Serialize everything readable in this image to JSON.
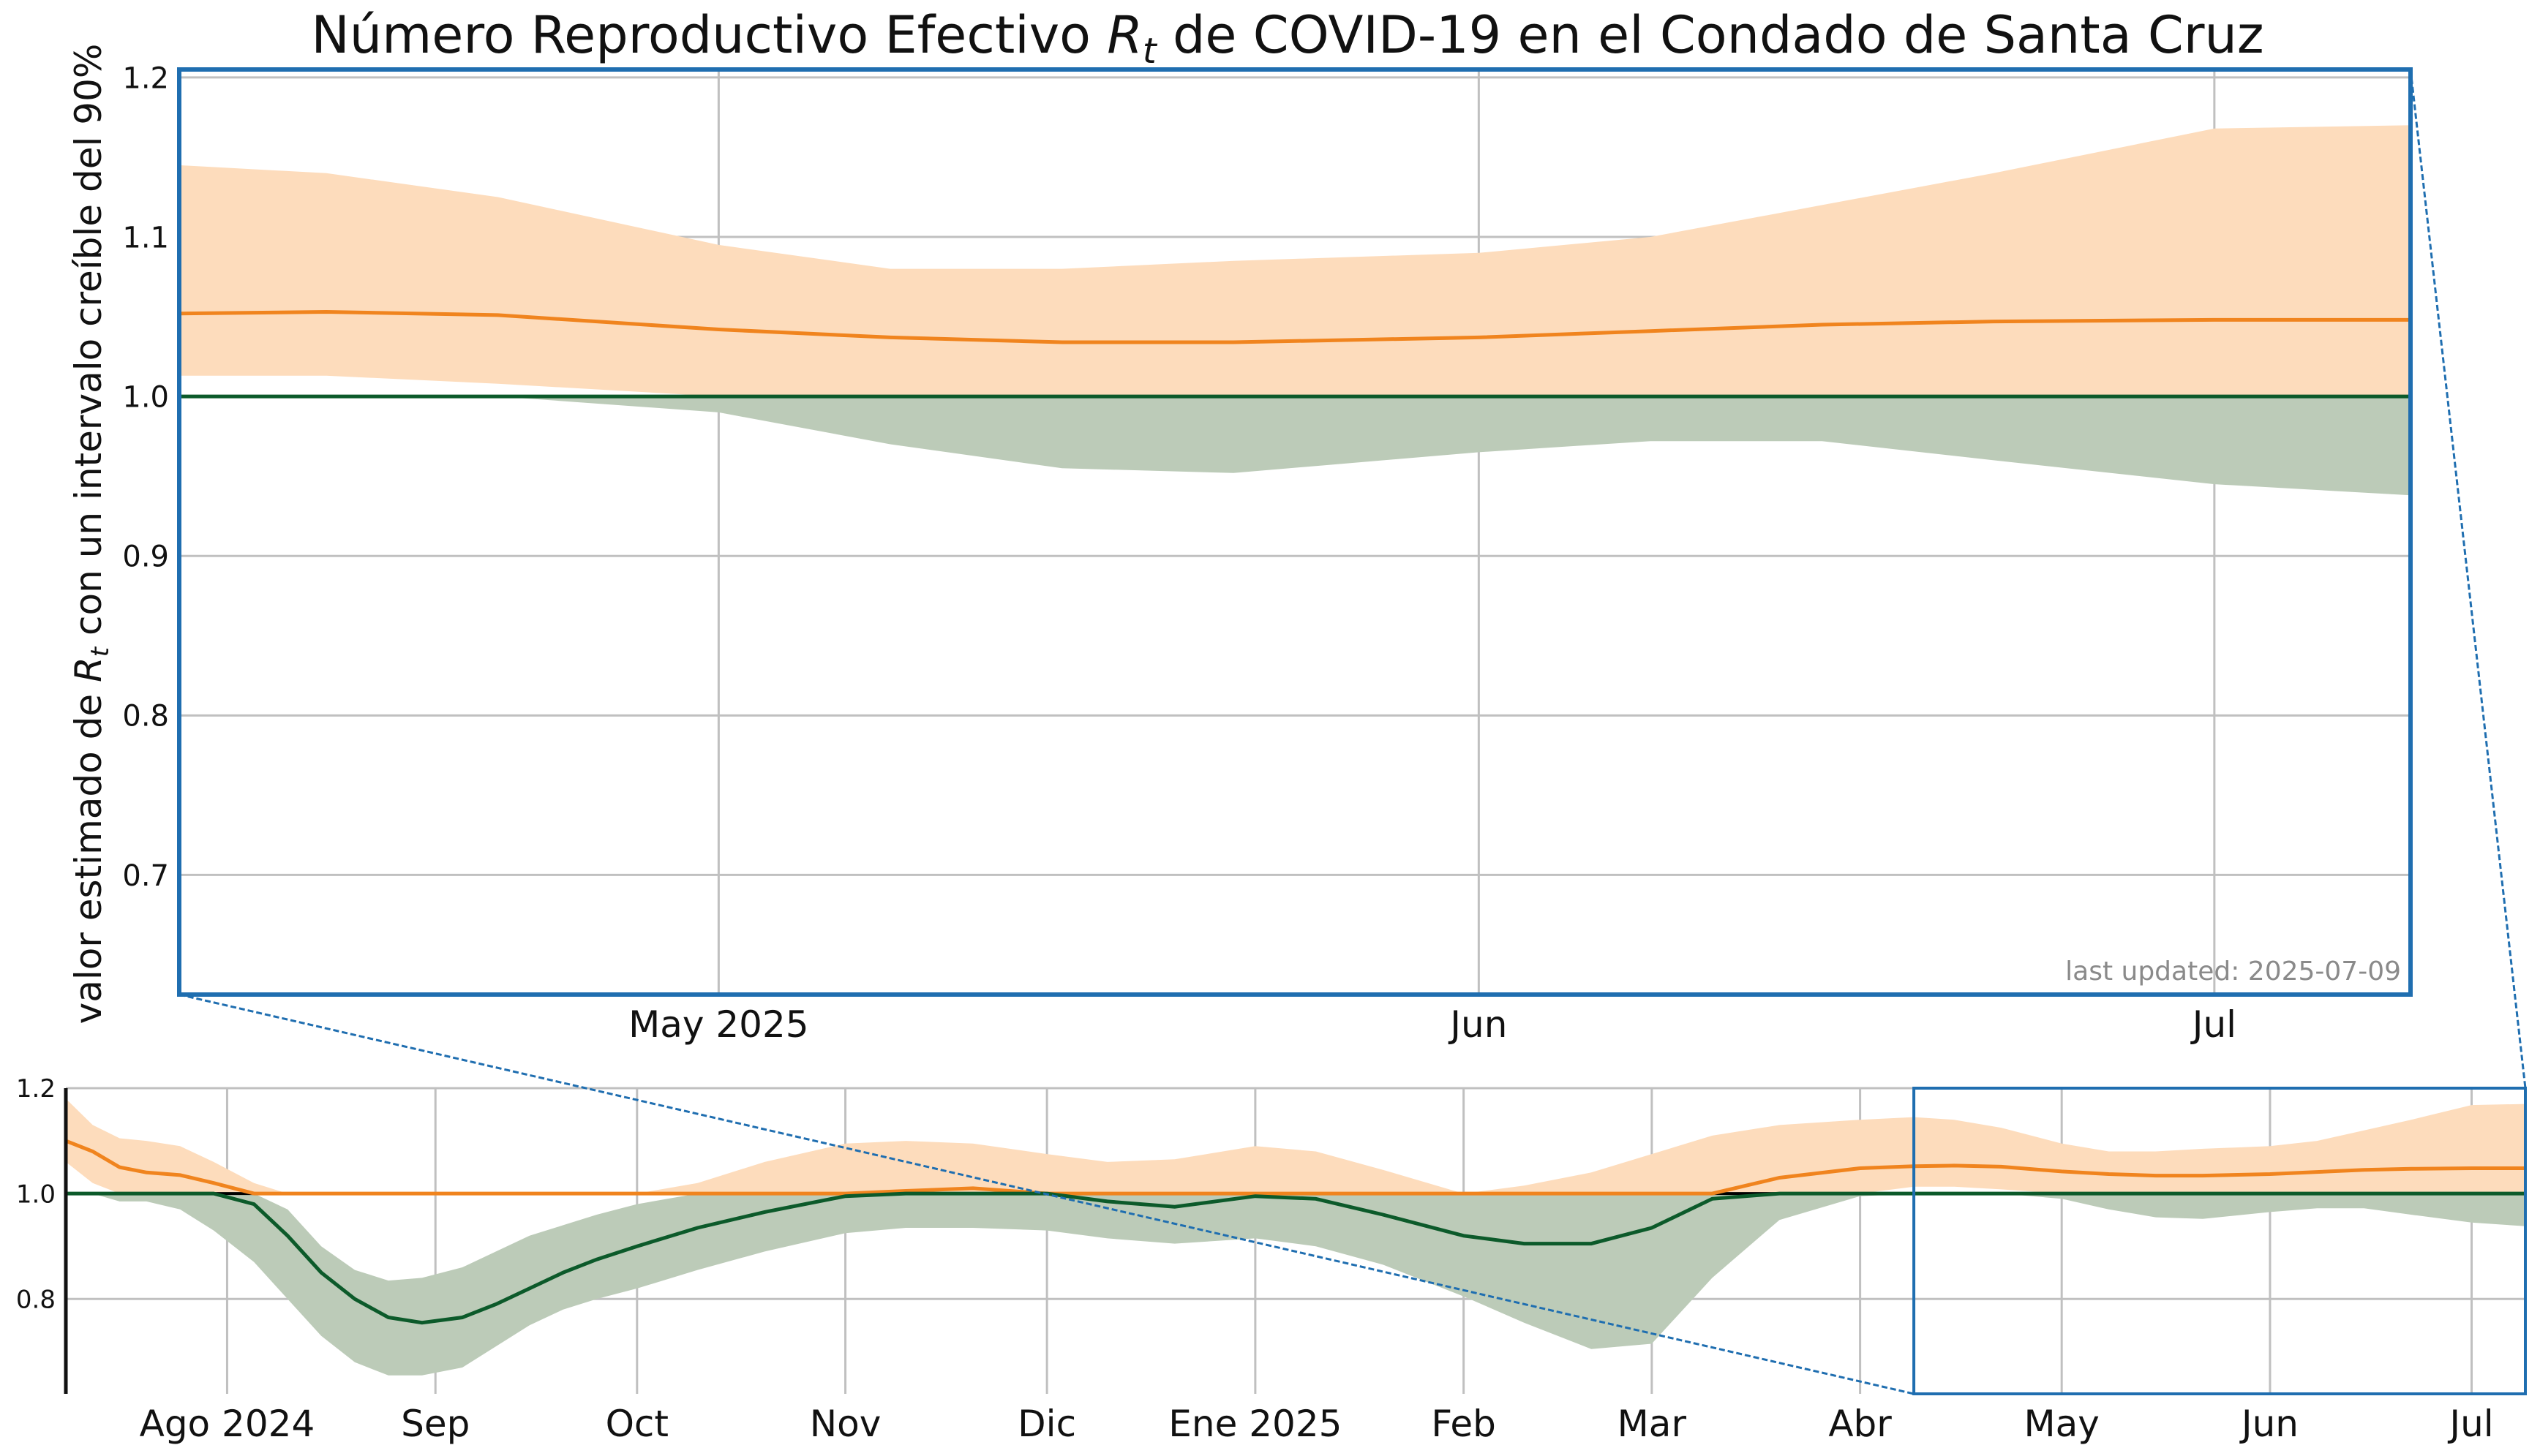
{
  "chart_data": {
    "type": "line",
    "title_prefix": "Número Reproductivo Efectivo ",
    "title_symbol": "R",
    "title_symbol_sub": "t",
    "title_suffix": " de COVID-19 en el Condado de Santa Cruz",
    "ylabel_prefix": "valor estimado de ",
    "ylabel_symbol": "R",
    "ylabel_symbol_sub": "t",
    "ylabel_suffix": " con un intervalo creíble del 90%",
    "annotation": "last updated: 2025-07-09",
    "reference_line": 1.0,
    "colors": {
      "above_line": "#f0841e",
      "above_band": "#fddcbc",
      "below_line": "#0c5a2a",
      "below_band": "#bccbb8",
      "zoom_box": "#1f6eb0",
      "reference": "#000000",
      "grid": "#c0c0c0"
    },
    "main_panel": {
      "x_range": [
        "2025-04-09",
        "2025-07-09"
      ],
      "y_range": [
        0.625,
        1.205
      ],
      "y_ticks": [
        0.7,
        0.8,
        0.9,
        1.0,
        1.1,
        1.2
      ],
      "y_tick_labels": [
        "0.7",
        "0.8",
        "0.9",
        "1.0",
        "1.1",
        "1.2"
      ],
      "x_ticks": [
        "2025-05-01",
        "2025-06-01",
        "2025-07-01"
      ],
      "x_tick_labels": [
        "May 2025",
        "Jun",
        "Jul"
      ]
    },
    "overview_panel": {
      "x_range": [
        "2024-07-08",
        "2025-07-09"
      ],
      "y_range": [
        0.62,
        1.2
      ],
      "y_ticks": [
        0.8,
        1.0,
        1.2
      ],
      "y_tick_labels": [
        "0.8",
        "1.0",
        "1.2"
      ],
      "x_ticks": [
        "2024-08-01",
        "2024-09-01",
        "2024-10-01",
        "2024-11-01",
        "2024-12-01",
        "2025-01-01",
        "2025-02-01",
        "2025-03-01",
        "2025-04-01",
        "2025-05-01",
        "2025-06-01",
        "2025-07-01"
      ],
      "x_tick_labels": [
        "Ago 2024",
        "Sep",
        "Oct",
        "Nov",
        "Dic",
        "Ene 2025",
        "Feb",
        "Mar",
        "Abr",
        "May",
        "Jun",
        "Jul"
      ],
      "zoom_window": [
        "2025-04-09",
        "2025-07-09"
      ]
    },
    "series": [
      {
        "x": [
          "2024-07-08",
          "2024-07-12",
          "2024-07-16",
          "2024-07-20",
          "2024-07-25",
          "2024-07-30",
          "2024-08-05",
          "2024-08-10",
          "2024-08-15",
          "2024-08-20",
          "2024-08-25",
          "2024-08-30",
          "2024-09-05",
          "2024-09-10",
          "2024-09-15",
          "2024-09-20",
          "2024-09-25",
          "2024-10-01",
          "2024-10-10",
          "2024-10-20",
          "2024-11-01",
          "2024-11-10",
          "2024-11-20",
          "2024-12-01",
          "2024-12-10",
          "2024-12-20",
          "2025-01-01",
          "2025-01-10",
          "2025-01-20",
          "2025-02-01",
          "2025-02-10",
          "2025-02-20",
          "2025-03-01",
          "2025-03-10",
          "2025-03-20",
          "2025-04-01",
          "2025-04-09",
          "2025-04-15",
          "2025-04-22",
          "2025-05-01",
          "2025-05-08",
          "2025-05-15",
          "2025-05-22",
          "2025-06-01",
          "2025-06-08",
          "2025-06-15",
          "2025-06-22",
          "2025-07-01",
          "2025-07-09"
        ],
        "median": [
          1.1,
          1.08,
          1.05,
          1.04,
          1.035,
          1.02,
          0.98,
          0.92,
          0.85,
          0.8,
          0.765,
          0.755,
          0.765,
          0.79,
          0.82,
          0.85,
          0.875,
          0.9,
          0.935,
          0.965,
          0.995,
          1.005,
          1.01,
          1.0,
          0.985,
          0.975,
          0.995,
          0.99,
          0.96,
          0.92,
          0.905,
          0.905,
          0.935,
          0.99,
          1.03,
          1.048,
          1.052,
          1.053,
          1.051,
          1.042,
          1.037,
          1.034,
          1.034,
          1.037,
          1.041,
          1.045,
          1.047,
          1.048,
          1.048
        ],
        "lower": [
          1.06,
          1.02,
          0.985,
          0.985,
          0.97,
          0.93,
          0.87,
          0.8,
          0.73,
          0.68,
          0.655,
          0.655,
          0.67,
          0.71,
          0.75,
          0.78,
          0.8,
          0.82,
          0.855,
          0.89,
          0.925,
          0.935,
          0.935,
          0.93,
          0.915,
          0.905,
          0.915,
          0.9,
          0.865,
          0.805,
          0.755,
          0.705,
          0.715,
          0.84,
          0.95,
          0.995,
          1.013,
          1.013,
          1.008,
          0.99,
          0.97,
          0.955,
          0.952,
          0.965,
          0.972,
          0.972,
          0.96,
          0.945,
          0.938
        ],
        "upper": [
          1.18,
          1.13,
          1.105,
          1.1,
          1.09,
          1.06,
          1.02,
          0.97,
          0.9,
          0.855,
          0.835,
          0.84,
          0.86,
          0.89,
          0.92,
          0.94,
          0.96,
          0.98,
          1.02,
          1.06,
          1.095,
          1.1,
          1.095,
          1.075,
          1.06,
          1.065,
          1.09,
          1.08,
          1.045,
          1.0,
          1.015,
          1.04,
          1.075,
          1.11,
          1.13,
          1.14,
          1.145,
          1.14,
          1.125,
          1.095,
          1.08,
          1.08,
          1.085,
          1.09,
          1.1,
          1.12,
          1.14,
          1.168,
          1.17
        ]
      }
    ]
  }
}
